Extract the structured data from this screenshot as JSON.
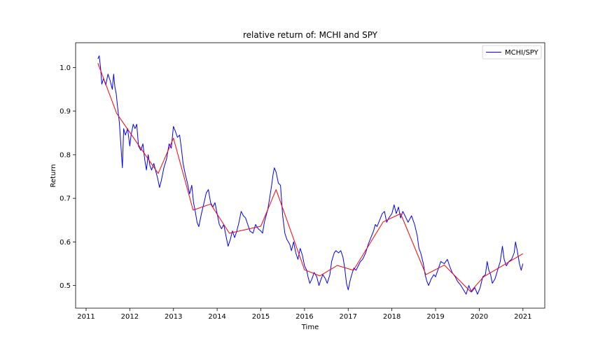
{
  "chart_data": {
    "type": "line",
    "title": "relative return of: MCHI and SPY",
    "xlabel": "Time",
    "ylabel": "Return",
    "x_ticks": [
      "2011",
      "2012",
      "2013",
      "2014",
      "2015",
      "2016",
      "2017",
      "2018",
      "2019",
      "2020",
      "2021"
    ],
    "y_ticks": [
      "0.5",
      "0.6",
      "0.7",
      "0.8",
      "0.9",
      "1.0"
    ],
    "xlim": [
      2010.76,
      2021.5
    ],
    "ylim": [
      0.448,
      1.057
    ],
    "grid": false,
    "legend": {
      "position": "top-right",
      "entries": [
        "MCHI/SPY"
      ]
    },
    "series": [
      {
        "name": "MCHI/SPY",
        "color": "#0000ff",
        "points": [
          [
            2011.27,
            1.02
          ],
          [
            2011.3,
            1.027
          ],
          [
            2011.33,
            1.0
          ],
          [
            2011.36,
            0.962
          ],
          [
            2011.4,
            0.975
          ],
          [
            2011.45,
            0.96
          ],
          [
            2011.5,
            0.985
          ],
          [
            2011.55,
            0.97
          ],
          [
            2011.6,
            0.95
          ],
          [
            2011.63,
            0.985
          ],
          [
            2011.66,
            0.955
          ],
          [
            2011.69,
            0.94
          ],
          [
            2011.72,
            0.91
          ],
          [
            2011.76,
            0.875
          ],
          [
            2011.79,
            0.83
          ],
          [
            2011.83,
            0.77
          ],
          [
            2011.86,
            0.86
          ],
          [
            2011.9,
            0.845
          ],
          [
            2011.95,
            0.86
          ],
          [
            2012.0,
            0.82
          ],
          [
            2012.03,
            0.845
          ],
          [
            2012.08,
            0.87
          ],
          [
            2012.12,
            0.86
          ],
          [
            2012.16,
            0.87
          ],
          [
            2012.2,
            0.82
          ],
          [
            2012.25,
            0.81
          ],
          [
            2012.3,
            0.825
          ],
          [
            2012.34,
            0.79
          ],
          [
            2012.38,
            0.765
          ],
          [
            2012.42,
            0.8
          ],
          [
            2012.46,
            0.775
          ],
          [
            2012.5,
            0.765
          ],
          [
            2012.55,
            0.78
          ],
          [
            2012.6,
            0.76
          ],
          [
            2012.64,
            0.745
          ],
          [
            2012.68,
            0.725
          ],
          [
            2012.72,
            0.74
          ],
          [
            2012.78,
            0.77
          ],
          [
            2012.84,
            0.79
          ],
          [
            2012.9,
            0.825
          ],
          [
            2012.95,
            0.815
          ],
          [
            2013.0,
            0.865
          ],
          [
            2013.04,
            0.855
          ],
          [
            2013.09,
            0.84
          ],
          [
            2013.14,
            0.845
          ],
          [
            2013.18,
            0.815
          ],
          [
            2013.22,
            0.78
          ],
          [
            2013.27,
            0.755
          ],
          [
            2013.32,
            0.735
          ],
          [
            2013.37,
            0.71
          ],
          [
            2013.42,
            0.73
          ],
          [
            2013.46,
            0.69
          ],
          [
            2013.5,
            0.67
          ],
          [
            2013.54,
            0.645
          ],
          [
            2013.58,
            0.635
          ],
          [
            2013.64,
            0.665
          ],
          [
            2013.7,
            0.69
          ],
          [
            2013.75,
            0.712
          ],
          [
            2013.8,
            0.72
          ],
          [
            2013.85,
            0.69
          ],
          [
            2013.9,
            0.68
          ],
          [
            2013.95,
            0.69
          ],
          [
            2014.0,
            0.665
          ],
          [
            2014.05,
            0.64
          ],
          [
            2014.1,
            0.63
          ],
          [
            2014.15,
            0.64
          ],
          [
            2014.2,
            0.615
          ],
          [
            2014.25,
            0.59
          ],
          [
            2014.3,
            0.605
          ],
          [
            2014.35,
            0.625
          ],
          [
            2014.4,
            0.61
          ],
          [
            2014.45,
            0.625
          ],
          [
            2014.5,
            0.645
          ],
          [
            2014.55,
            0.67
          ],
          [
            2014.6,
            0.66
          ],
          [
            2014.65,
            0.655
          ],
          [
            2014.7,
            0.64
          ],
          [
            2014.75,
            0.625
          ],
          [
            2014.82,
            0.62
          ],
          [
            2014.88,
            0.64
          ],
          [
            2014.94,
            0.63
          ],
          [
            2015.0,
            0.625
          ],
          [
            2015.04,
            0.62
          ],
          [
            2015.08,
            0.645
          ],
          [
            2015.12,
            0.66
          ],
          [
            2015.16,
            0.675
          ],
          [
            2015.2,
            0.7
          ],
          [
            2015.24,
            0.725
          ],
          [
            2015.28,
            0.755
          ],
          [
            2015.31,
            0.77
          ],
          [
            2015.35,
            0.76
          ],
          [
            2015.4,
            0.735
          ],
          [
            2015.45,
            0.73
          ],
          [
            2015.5,
            0.66
          ],
          [
            2015.55,
            0.62
          ],
          [
            2015.6,
            0.605
          ],
          [
            2015.66,
            0.595
          ],
          [
            2015.7,
            0.58
          ],
          [
            2015.75,
            0.6
          ],
          [
            2015.8,
            0.575
          ],
          [
            2015.85,
            0.56
          ],
          [
            2015.9,
            0.585
          ],
          [
            2015.95,
            0.57
          ],
          [
            2016.0,
            0.545
          ],
          [
            2016.05,
            0.535
          ],
          [
            2016.08,
            0.52
          ],
          [
            2016.12,
            0.505
          ],
          [
            2016.17,
            0.515
          ],
          [
            2016.22,
            0.53
          ],
          [
            2016.28,
            0.52
          ],
          [
            2016.33,
            0.5
          ],
          [
            2016.38,
            0.515
          ],
          [
            2016.42,
            0.525
          ],
          [
            2016.48,
            0.515
          ],
          [
            2016.52,
            0.505
          ],
          [
            2016.58,
            0.525
          ],
          [
            2016.62,
            0.555
          ],
          [
            2016.68,
            0.575
          ],
          [
            2016.72,
            0.58
          ],
          [
            2016.78,
            0.575
          ],
          [
            2016.83,
            0.58
          ],
          [
            2016.88,
            0.565
          ],
          [
            2016.92,
            0.54
          ],
          [
            2016.96,
            0.505
          ],
          [
            2017.0,
            0.49
          ],
          [
            2017.04,
            0.51
          ],
          [
            2017.08,
            0.525
          ],
          [
            2017.13,
            0.54
          ],
          [
            2017.18,
            0.535
          ],
          [
            2017.23,
            0.545
          ],
          [
            2017.28,
            0.555
          ],
          [
            2017.33,
            0.56
          ],
          [
            2017.4,
            0.575
          ],
          [
            2017.46,
            0.595
          ],
          [
            2017.52,
            0.61
          ],
          [
            2017.58,
            0.625
          ],
          [
            2017.62,
            0.64
          ],
          [
            2017.66,
            0.635
          ],
          [
            2017.72,
            0.65
          ],
          [
            2017.78,
            0.665
          ],
          [
            2017.83,
            0.67
          ],
          [
            2017.88,
            0.645
          ],
          [
            2017.93,
            0.655
          ],
          [
            2018.0,
            0.665
          ],
          [
            2018.05,
            0.685
          ],
          [
            2018.1,
            0.665
          ],
          [
            2018.15,
            0.68
          ],
          [
            2018.2,
            0.655
          ],
          [
            2018.25,
            0.67
          ],
          [
            2018.3,
            0.66
          ],
          [
            2018.37,
            0.645
          ],
          [
            2018.45,
            0.66
          ],
          [
            2018.52,
            0.64
          ],
          [
            2018.58,
            0.615
          ],
          [
            2018.62,
            0.585
          ],
          [
            2018.66,
            0.575
          ],
          [
            2018.72,
            0.55
          ],
          [
            2018.76,
            0.525
          ],
          [
            2018.8,
            0.51
          ],
          [
            2018.84,
            0.5
          ],
          [
            2018.9,
            0.515
          ],
          [
            2018.96,
            0.525
          ],
          [
            2019.0,
            0.52
          ],
          [
            2019.05,
            0.535
          ],
          [
            2019.12,
            0.555
          ],
          [
            2019.2,
            0.55
          ],
          [
            2019.27,
            0.56
          ],
          [
            2019.32,
            0.545
          ],
          [
            2019.38,
            0.53
          ],
          [
            2019.45,
            0.52
          ],
          [
            2019.5,
            0.51
          ],
          [
            2019.58,
            0.5
          ],
          [
            2019.64,
            0.49
          ],
          [
            2019.7,
            0.48
          ],
          [
            2019.76,
            0.5
          ],
          [
            2019.82,
            0.485
          ],
          [
            2019.9,
            0.495
          ],
          [
            2019.96,
            0.48
          ],
          [
            2020.02,
            0.495
          ],
          [
            2020.08,
            0.52
          ],
          [
            2020.14,
            0.525
          ],
          [
            2020.18,
            0.555
          ],
          [
            2020.22,
            0.535
          ],
          [
            2020.26,
            0.525
          ],
          [
            2020.3,
            0.505
          ],
          [
            2020.36,
            0.515
          ],
          [
            2020.42,
            0.535
          ],
          [
            2020.48,
            0.555
          ],
          [
            2020.53,
            0.59
          ],
          [
            2020.57,
            0.56
          ],
          [
            2020.62,
            0.545
          ],
          [
            2020.68,
            0.555
          ],
          [
            2020.74,
            0.56
          ],
          [
            2020.8,
            0.575
          ],
          [
            2020.83,
            0.6
          ],
          [
            2020.87,
            0.58
          ],
          [
            2020.92,
            0.55
          ],
          [
            2020.96,
            0.535
          ],
          [
            2021.0,
            0.55
          ]
        ]
      },
      {
        "color": "#ff0000",
        "points": [
          [
            2011.27,
            1.01
          ],
          [
            2011.7,
            0.895
          ],
          [
            2012.65,
            0.757
          ],
          [
            2013.0,
            0.838
          ],
          [
            2013.45,
            0.673
          ],
          [
            2013.85,
            0.687
          ],
          [
            2014.28,
            0.62
          ],
          [
            2015.0,
            0.636
          ],
          [
            2015.35,
            0.72
          ],
          [
            2016.0,
            0.536
          ],
          [
            2016.35,
            0.522
          ],
          [
            2016.75,
            0.546
          ],
          [
            2017.12,
            0.535
          ],
          [
            2017.8,
            0.646
          ],
          [
            2018.2,
            0.665
          ],
          [
            2018.78,
            0.525
          ],
          [
            2019.2,
            0.547
          ],
          [
            2019.8,
            0.486
          ],
          [
            2020.1,
            0.52
          ],
          [
            2021.0,
            0.573
          ]
        ]
      }
    ]
  }
}
